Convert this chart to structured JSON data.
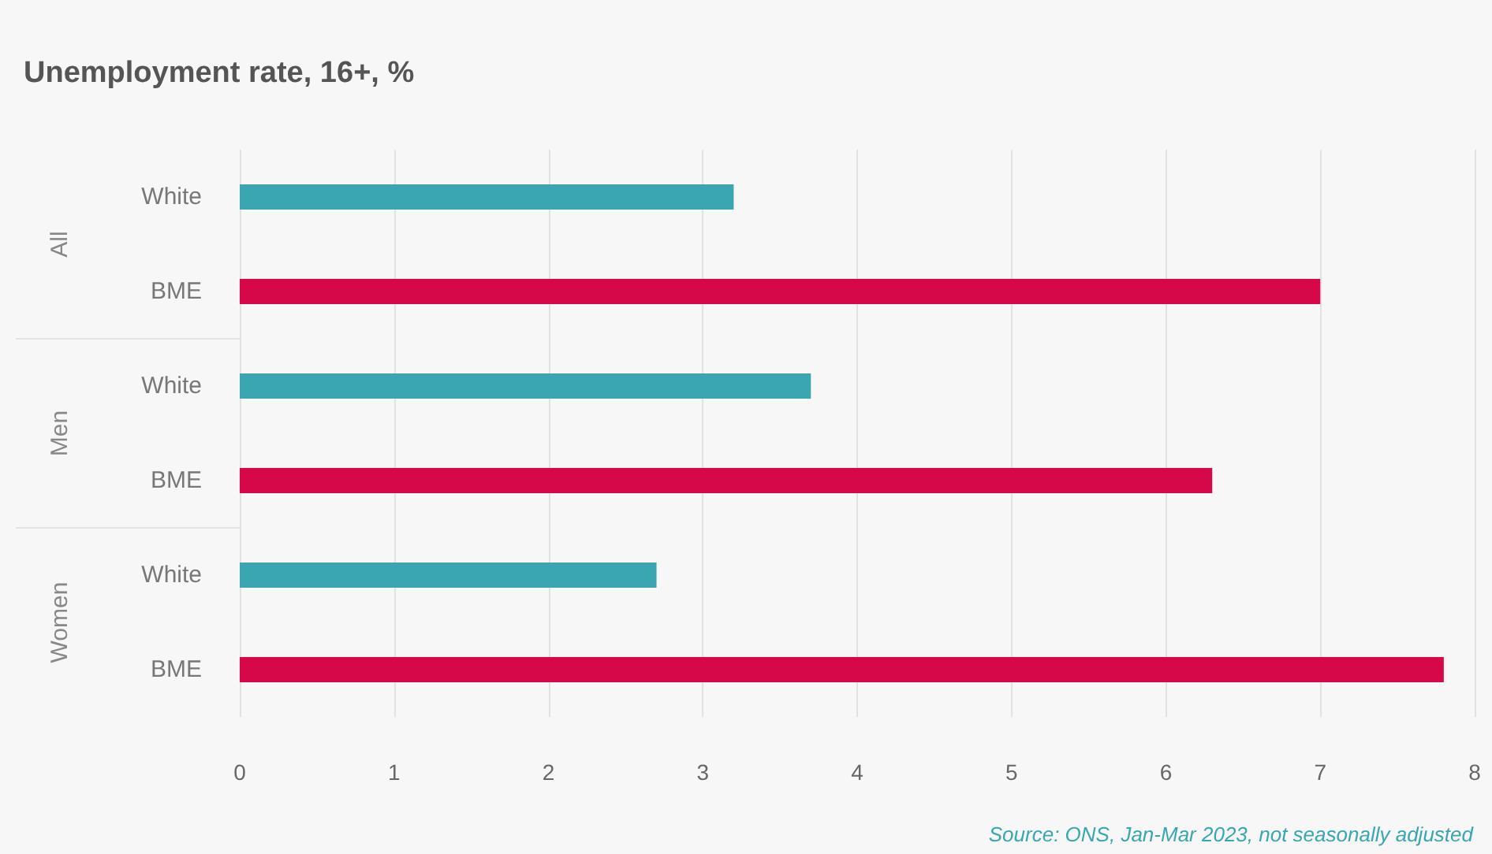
{
  "chart_data": {
    "type": "bar",
    "orientation": "horizontal",
    "title": "Unemployment rate, 16+, %",
    "categories": [
      "White",
      "BME",
      "White",
      "BME",
      "White",
      "BME"
    ],
    "values": [
      3.2,
      7.0,
      3.7,
      6.3,
      2.7,
      7.8
    ],
    "colors": [
      "#3aa6b0",
      "#d6084a",
      "#3aa6b0",
      "#d6084a",
      "#3aa6b0",
      "#d6084a"
    ],
    "xlim": [
      0,
      8
    ],
    "xticks": [
      0,
      1,
      2,
      3,
      4,
      5,
      6,
      7,
      8
    ],
    "grid": "x",
    "annotations": [
      "All",
      "Men",
      "Women",
      "Source: ONS, Jan-Mar 2023, not seasonally adjusted"
    ]
  }
}
